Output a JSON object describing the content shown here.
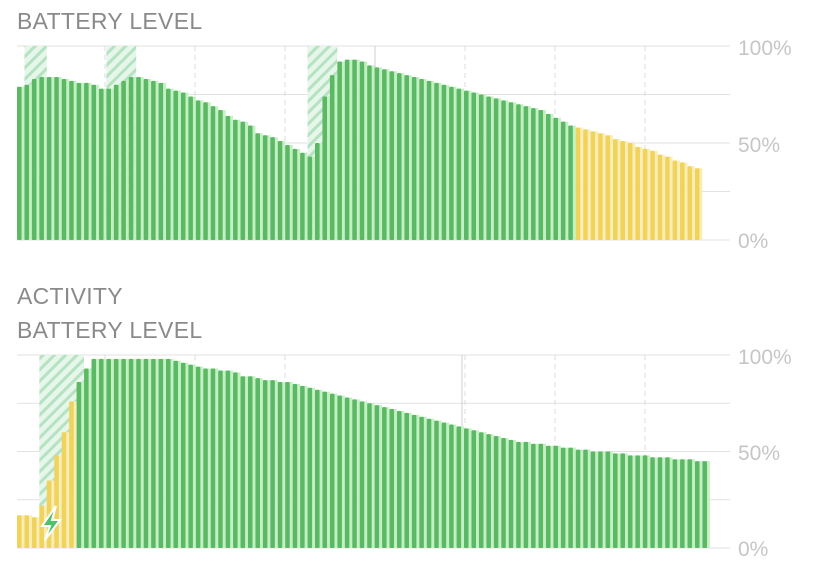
{
  "labels": {
    "title1": "BATTERY LEVEL",
    "activity": "ACTIVITY",
    "title2": "BATTERY LEVEL"
  },
  "colors": {
    "green": "#5db865",
    "green_light": "#c2f2c2",
    "yellow": "#f0d35c",
    "yellow_light": "#fbeeb4",
    "grid": "#e2e2e2",
    "hatch": "#a9dcb4"
  },
  "chart_data": [
    {
      "type": "bar",
      "title": "BATTERY LEVEL",
      "ylim": [
        0,
        100
      ],
      "yticks": [
        "100%",
        "50%",
        "0%"
      ],
      "grid": true,
      "low_power_from_index": 75,
      "charging_ranges": [
        [
          1,
          3
        ],
        [
          12,
          15
        ],
        [
          39,
          42
        ]
      ],
      "values": [
        79,
        80,
        83,
        84,
        84,
        84,
        83,
        82,
        81,
        81,
        80,
        78,
        78,
        80,
        82,
        84,
        84,
        83,
        82,
        81,
        78,
        77,
        76,
        74,
        72,
        71,
        69,
        67,
        64,
        62,
        61,
        59,
        55,
        54,
        53,
        51,
        49,
        47,
        45,
        43,
        50,
        74,
        85,
        92,
        93,
        93,
        92,
        90,
        89,
        88,
        87,
        86,
        85,
        84,
        83,
        82,
        81,
        80,
        79,
        78,
        77,
        76,
        75,
        74,
        73,
        72,
        71,
        70,
        69,
        68,
        67,
        65,
        63,
        61,
        59,
        58,
        57,
        56,
        55,
        54,
        52,
        51,
        50,
        48,
        47,
        46,
        44,
        43,
        41,
        40,
        38,
        37
      ]
    },
    {
      "type": "bar",
      "title": "BATTERY LEVEL",
      "ylim": [
        0,
        100
      ],
      "yticks": [
        "100%",
        "50%",
        "0%"
      ],
      "grid": true,
      "low_power_until_index": 8,
      "charging_ranges": [
        [
          3,
          8
        ]
      ],
      "charging_icon": "lightning-bolt",
      "values": [
        17,
        17,
        16,
        22,
        35,
        48,
        60,
        76,
        86,
        93,
        98,
        98,
        98,
        98,
        98,
        98,
        98,
        98,
        98,
        98,
        98,
        97,
        96,
        95,
        94,
        93,
        93,
        92,
        92,
        91,
        89,
        89,
        88,
        87,
        87,
        86,
        86,
        85,
        84,
        83,
        82,
        81,
        80,
        79,
        78,
        77,
        76,
        75,
        74,
        73,
        72,
        71,
        70,
        69,
        68,
        67,
        66,
        65,
        64,
        63,
        62,
        61,
        60,
        59,
        58,
        57,
        56,
        55,
        55,
        54,
        54,
        53,
        53,
        52,
        52,
        51,
        51,
        50,
        50,
        50,
        49,
        49,
        48,
        48,
        48,
        47,
        47,
        47,
        46,
        46,
        46,
        45,
        45
      ]
    }
  ]
}
